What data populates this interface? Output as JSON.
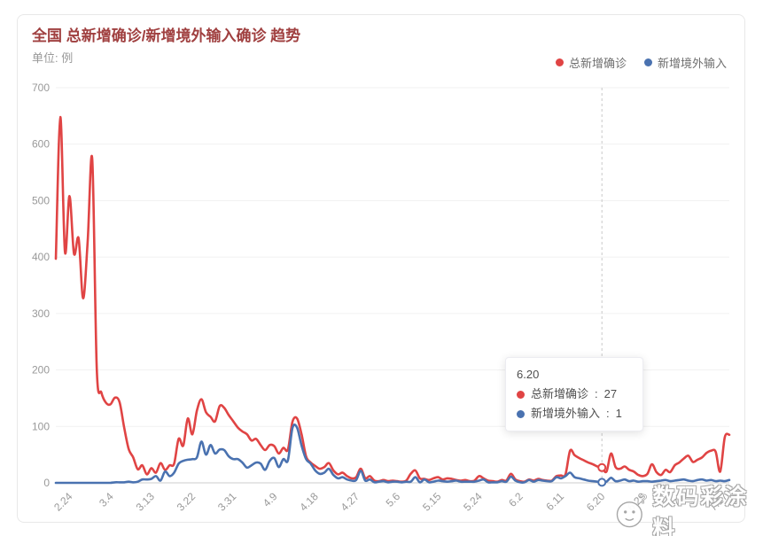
{
  "header": {
    "title": "全国 总新增确诊/新增境外输入确诊 趋势",
    "title_color": "#a04040",
    "unit_label": "单位: 例"
  },
  "legend": {
    "items": [
      {
        "label": "总新增确诊",
        "color": "#e04444"
      },
      {
        "label": "新增境外输入",
        "color": "#4a72b0"
      }
    ]
  },
  "tooltip": {
    "date": "6.20",
    "items": [
      {
        "label": "总新增确诊",
        "value": 27,
        "color": "#e04444"
      },
      {
        "label": "新增境外输入",
        "value": 1,
        "color": "#4a72b0"
      }
    ]
  },
  "watermark": {
    "text": "数码彩涂料"
  },
  "colors": {
    "grid": "#f1f1f1",
    "axis": "#cccccc",
    "axis_label": "#999999",
    "dashed_pointer": "#c9c9c9"
  },
  "chart_data": {
    "type": "line",
    "title": "全国 总新增确诊/新增境外输入确诊 趋势",
    "ylabel": "例",
    "ylim": [
      0,
      700
    ],
    "yticks": [
      0,
      100,
      200,
      300,
      400,
      500,
      600,
      700
    ],
    "grid": true,
    "smooth": true,
    "legend_position": "top-right",
    "highlight_x": "6.20",
    "xtick_labels": [
      "2.24",
      "3.4",
      "3.13",
      "3.22",
      "3.31",
      "4.9",
      "4.18",
      "4.27",
      "5.6",
      "5.15",
      "5.24",
      "6.2",
      "6.11",
      "6.20",
      "6.29",
      "7.8",
      "7.17"
    ],
    "x": [
      "2.21",
      "2.22",
      "2.23",
      "2.24",
      "2.25",
      "2.26",
      "2.27",
      "2.28",
      "2.29",
      "3.1",
      "3.2",
      "3.3",
      "3.4",
      "3.5",
      "3.6",
      "3.7",
      "3.8",
      "3.9",
      "3.10",
      "3.11",
      "3.12",
      "3.13",
      "3.14",
      "3.15",
      "3.16",
      "3.17",
      "3.18",
      "3.19",
      "3.20",
      "3.21",
      "3.22",
      "3.23",
      "3.24",
      "3.25",
      "3.26",
      "3.27",
      "3.28",
      "3.29",
      "3.30",
      "3.31",
      "4.1",
      "4.2",
      "4.3",
      "4.4",
      "4.5",
      "4.6",
      "4.7",
      "4.8",
      "4.9",
      "4.10",
      "4.11",
      "4.12",
      "4.13",
      "4.14",
      "4.15",
      "4.16",
      "4.17",
      "4.18",
      "4.19",
      "4.20",
      "4.21",
      "4.22",
      "4.23",
      "4.24",
      "4.25",
      "4.26",
      "4.27",
      "4.28",
      "4.29",
      "4.30",
      "5.1",
      "5.2",
      "5.3",
      "5.4",
      "5.5",
      "5.6",
      "5.7",
      "5.8",
      "5.9",
      "5.10",
      "5.11",
      "5.12",
      "5.13",
      "5.14",
      "5.15",
      "5.16",
      "5.17",
      "5.18",
      "5.19",
      "5.20",
      "5.21",
      "5.22",
      "5.23",
      "5.24",
      "5.25",
      "5.26",
      "5.27",
      "5.28",
      "5.29",
      "5.30",
      "5.31",
      "6.1",
      "6.2",
      "6.3",
      "6.4",
      "6.5",
      "6.6",
      "6.7",
      "6.8",
      "6.9",
      "6.10",
      "6.11",
      "6.12",
      "6.13",
      "6.14",
      "6.15",
      "6.16",
      "6.17",
      "6.18",
      "6.19",
      "6.20",
      "6.21",
      "6.22",
      "6.23",
      "6.24",
      "6.25",
      "6.26",
      "6.27",
      "6.28",
      "6.29",
      "6.30",
      "7.1",
      "7.2",
      "7.3",
      "7.4",
      "7.5",
      "7.6",
      "7.7",
      "7.8",
      "7.9",
      "7.10",
      "7.11",
      "7.12",
      "7.13",
      "7.14",
      "7.15",
      "7.16",
      "7.17",
      "7.18"
    ],
    "series": [
      {
        "name": "总新增确诊",
        "color": "#e04444",
        "values": [
          397,
          648,
          409,
          508,
          406,
          433,
          327,
          427,
          573,
          202,
          160,
          142,
          139,
          151,
          143,
          99,
          60,
          45,
          24,
          31,
          15,
          26,
          18,
          35,
          23,
          31,
          34,
          78,
          66,
          114,
          86,
          128,
          148,
          125,
          117,
          109,
          136,
          133,
          120,
          109,
          98,
          91,
          86,
          75,
          78,
          67,
          58,
          67,
          65,
          52,
          62,
          59,
          108,
          114,
          86,
          47,
          36,
          30,
          25,
          28,
          35,
          22,
          15,
          18,
          12,
          8,
          10,
          25,
          8,
          12,
          4,
          3,
          5,
          3,
          4,
          3,
          2,
          4,
          16,
          22,
          8,
          7,
          5,
          8,
          10,
          6,
          8,
          7,
          5,
          4,
          5,
          3,
          4,
          12,
          8,
          4,
          3,
          2,
          5,
          4,
          16,
          6,
          3,
          2,
          6,
          4,
          7,
          5,
          4,
          4,
          12,
          13,
          15,
          57,
          49,
          44,
          40,
          36,
          33,
          29,
          27,
          20,
          52,
          28,
          25,
          29,
          23,
          20,
          14,
          12,
          16,
          33,
          19,
          14,
          23,
          19,
          31,
          36,
          43,
          48,
          37,
          41,
          45,
          53,
          57,
          55,
          20,
          81,
          85
        ]
      },
      {
        "name": "新增境外输入",
        "color": "#4a72b0",
        "values": [
          0,
          0,
          0,
          0,
          0,
          0,
          0,
          0,
          0,
          0,
          0,
          0,
          0,
          1,
          1,
          1,
          2,
          1,
          2,
          6,
          6,
          7,
          12,
          4,
          20,
          12,
          18,
          34,
          39,
          41,
          42,
          45,
          73,
          50,
          67,
          52,
          59,
          58,
          47,
          42,
          42,
          36,
          27,
          31,
          36,
          34,
          23,
          39,
          44,
          28,
          42,
          40,
          97,
          98,
          66,
          42,
          34,
          22,
          16,
          18,
          25,
          14,
          8,
          10,
          6,
          4,
          5,
          21,
          4,
          6,
          1,
          2,
          3,
          1,
          2,
          2,
          1,
          2,
          2,
          10,
          1,
          6,
          1,
          2,
          4,
          3,
          2,
          3,
          4,
          2,
          2,
          2,
          2,
          4,
          6,
          1,
          1,
          1,
          3,
          2,
          11,
          4,
          1,
          1,
          5,
          2,
          5,
          4,
          3,
          3,
          10,
          8,
          12,
          18,
          10,
          8,
          6,
          4,
          3,
          2,
          1,
          2,
          9,
          3,
          4,
          6,
          3,
          4,
          2,
          3,
          3,
          2,
          3,
          4,
          5,
          3,
          4,
          5,
          6,
          4,
          3,
          5,
          6,
          4,
          5,
          3,
          4,
          3,
          5
        ]
      }
    ]
  }
}
